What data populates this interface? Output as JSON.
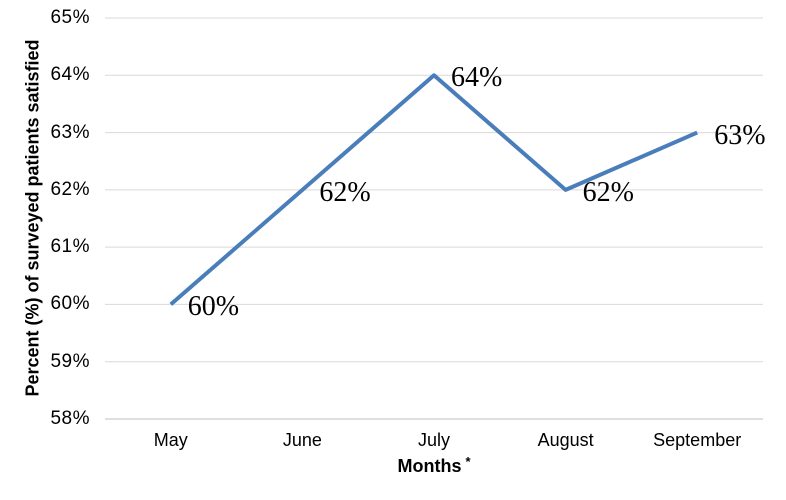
{
  "chart_data": {
    "type": "line",
    "categories": [
      "May",
      "June",
      "July",
      "August",
      "September"
    ],
    "values": [
      60,
      62,
      64,
      62,
      63
    ],
    "data_labels": [
      "60%",
      "62%",
      "64%",
      "62%",
      "63%"
    ],
    "title": "",
    "ylabel": "Percent (%) of surveyed patients satisfied",
    "xlabel": "Months",
    "xlabel_note": "*",
    "ylim": [
      58,
      65
    ],
    "ytick_step": 1,
    "ytick_labels": [
      "58%",
      "59%",
      "60%",
      "61%",
      "62%",
      "63%",
      "64%",
      "65%"
    ],
    "grid": true,
    "legend_position": "none",
    "line_color": "#4A7EBB",
    "gridline_color": "#D9D9D9",
    "axis_line_color": "#BFBFBF",
    "text_color": "#000000",
    "background_color": "#FFFFFF"
  }
}
